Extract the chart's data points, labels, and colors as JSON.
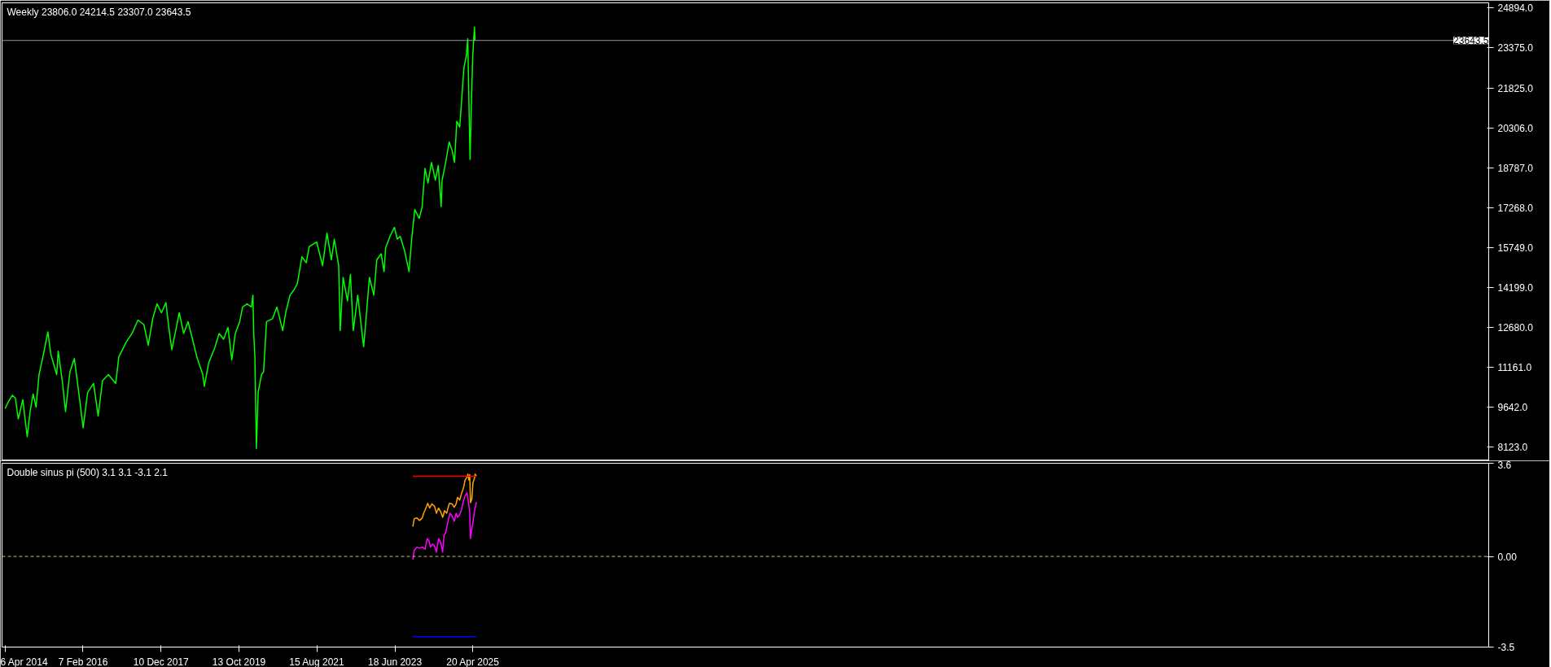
{
  "chart_data": [
    {
      "type": "line",
      "title": "Weekly  23806.0 24214.5 23307.0 23643.5",
      "x": [
        "2014-04-06",
        "2014-05-01",
        "2014-06-08",
        "2014-07-04",
        "2014-07-29",
        "2014-09-06",
        "2014-10-14",
        "2014-11-08",
        "2014-12-04",
        "2014-12-29",
        "2015-01-24",
        "2015-03-03",
        "2015-04-10",
        "2015-05-05",
        "2015-06-25",
        "2015-07-08",
        "2015-08-15",
        "2015-09-09",
        "2015-10-17",
        "2015-11-24",
        "2016-01-01",
        "2016-02-08",
        "2016-03-18",
        "2016-05-08",
        "2016-06-16",
        "2016-07-24",
        "2016-09-13",
        "2016-11-15",
        "2016-12-11",
        "2017-02-12",
        "2017-04-04",
        "2017-05-25",
        "2017-07-15",
        "2017-08-22",
        "2017-09-29",
        "2017-11-06",
        "2017-12-14",
        "2018-01-21",
        "2018-02-15",
        "2018-03-13",
        "2018-04-21",
        "2018-05-16",
        "2018-06-23",
        "2018-07-31",
        "2018-09-07",
        "2018-10-15",
        "2018-12-05",
        "2018-12-18",
        "2019-01-25",
        "2019-03-17",
        "2019-04-25",
        "2019-06-02",
        "2019-07-10",
        "2019-08-12",
        "2019-09-11",
        "2019-10-19",
        "2019-11-13",
        "2019-12-21",
        "2020-01-28",
        "2020-02-10",
        "2020-02-17",
        "2020-02-27",
        "2020-03-11",
        "2020-03-26",
        "2020-04-24",
        "2020-05-12",
        "2020-06-06",
        "2020-07-27",
        "2020-09-03",
        "2020-10-24",
        "2020-11-18",
        "2020-12-26",
        "2021-02-02",
        "2021-02-27",
        "2021-04-07",
        "2021-05-15",
        "2021-06-09",
        "2021-08-12",
        "2021-10-02",
        "2021-11-09",
        "2021-12-17",
        "2022-01-11",
        "2022-02-18",
        "2022-03-03",
        "2022-03-28",
        "2022-05-05",
        "2022-05-30",
        "2022-06-24",
        "2022-08-01",
        "2022-09-21",
        "2022-10-16",
        "2022-11-10",
        "2022-12-18",
        "2023-01-12",
        "2023-02-19",
        "2023-03-16",
        "2023-03-29",
        "2023-05-06",
        "2023-06-13",
        "2023-07-08",
        "2023-08-02",
        "2023-09-09",
        "2023-10-17",
        "2023-11-11",
        "2023-12-06",
        "2024-01-13",
        "2024-02-07",
        "2024-03-03",
        "2024-03-28",
        "2024-04-28",
        "2024-05-31",
        "2024-06-25",
        "2024-07-20",
        "2024-07-28",
        "2024-08-28",
        "2024-09-27",
        "2024-10-23",
        "2024-11-12",
        "2024-12-02",
        "2024-12-27",
        "2025-01-14",
        "2025-02-01",
        "2025-02-21",
        "2025-03-06",
        "2025-03-19",
        "2025-03-26",
        "2025-04-08",
        "2025-04-18",
        "2025-05-03",
        "2025-05-08"
      ],
      "series": [
        {
          "color": "#00ff00",
          "values": [
            9590,
            9820,
            10100,
            9990,
            9200,
            9930,
            8520,
            9480,
            10150,
            9650,
            10890,
            11670,
            12520,
            11670,
            10890,
            11790,
            10550,
            9480,
            11000,
            11500,
            10210,
            8860,
            10210,
            10550,
            9310,
            10660,
            10890,
            10550,
            11560,
            12120,
            12460,
            12970,
            12800,
            12010,
            13020,
            13590,
            13250,
            13640,
            12690,
            11840,
            12690,
            13250,
            12460,
            12910,
            12240,
            11560,
            10890,
            10440,
            11340,
            11900,
            12460,
            12240,
            12690,
            11450,
            12460,
            12910,
            13470,
            13590,
            13470,
            13920,
            12460,
            11560,
            8070,
            10210,
            10890,
            11000,
            12910,
            13020,
            13470,
            12570,
            13250,
            13920,
            14150,
            14370,
            15390,
            15160,
            15780,
            15950,
            15050,
            16290,
            15270,
            16060,
            15050,
            12570,
            14600,
            13700,
            14710,
            12570,
            13920,
            11950,
            13250,
            14600,
            13920,
            15270,
            15500,
            14820,
            15720,
            16170,
            16510,
            16060,
            16170,
            15610,
            14820,
            16170,
            17190,
            16850,
            17300,
            18760,
            18200,
            18990,
            18310,
            18870,
            17300,
            18310,
            18990,
            19770,
            19440,
            18990,
            20560,
            20340,
            21460,
            22590,
            23040,
            23710,
            20670,
            19100,
            21460,
            23040,
            24160,
            23643.5
          ]
        }
      ],
      "xlim": [
        "2014-03-11",
        "2049-04-07"
      ],
      "ylim": [
        7630,
        25080
      ],
      "yticks": [
        {
          "value": 24894,
          "label": "24894.0"
        },
        {
          "value": 23375,
          "label": "23375.0"
        },
        {
          "value": 21825,
          "label": "21825.0"
        },
        {
          "value": 20306,
          "label": "20306.0"
        },
        {
          "value": 18787,
          "label": "18787.0"
        },
        {
          "value": 17268,
          "label": "17268.0"
        },
        {
          "value": 15749,
          "label": "15749.0"
        },
        {
          "value": 14199,
          "label": "14199.0"
        },
        {
          "value": 12680,
          "label": "12680.0"
        },
        {
          "value": 11161,
          "label": "11161.0"
        },
        {
          "value": 9642,
          "label": "9642.0"
        },
        {
          "value": 8123,
          "label": "8123.0"
        }
      ],
      "ref_lines": [
        {
          "axis": "y",
          "value": 23643.5,
          "label": "23643.5",
          "color": "#8899aa",
          "line_style": "solid"
        }
      ],
      "tick_labels": "y"
    },
    {
      "type": "line",
      "title": "Double sinus pi (500) 3.1 3.1 -3.1 2.1",
      "series": [
        {
          "color": "#ffa500",
          "x": [
            "2023-11-19",
            "2023-12-01",
            "2023-12-24",
            "2024-01-16",
            "2024-02-09",
            "2024-02-20",
            "2024-03-15",
            "2024-03-26",
            "2024-04-12",
            "2024-04-30",
            "2024-05-24",
            "2024-06-09",
            "2024-06-28",
            "2024-07-16",
            "2024-08-02",
            "2024-08-18",
            "2024-09-06",
            "2024-09-17",
            "2024-09-29",
            "2024-10-22",
            "2024-11-10",
            "2024-11-26",
            "2024-12-08",
            "2024-12-27",
            "2025-01-12",
            "2025-01-28",
            "2025-02-11",
            "2025-02-28",
            "2025-03-07",
            "2025-03-16",
            "2025-03-23",
            "2025-03-30",
            "2025-04-11",
            "2025-04-20",
            "2025-05-02",
            "2025-05-09",
            "2025-05-20"
          ],
          "values": [
            1.15,
            1.46,
            1.49,
            1.39,
            1.49,
            1.67,
            1.92,
            2.05,
            1.87,
            2.03,
            1.94,
            1.67,
            1.87,
            1.72,
            1.51,
            1.77,
            1.67,
            1.87,
            2.05,
            2.03,
            1.9,
            2.03,
            2.28,
            2.18,
            2.44,
            2.64,
            2.95,
            3.06,
            3.18,
            2.95,
            3.16,
            2.08,
            2.23,
            2.85,
            3.0,
            3.18,
            3.1
          ]
        },
        {
          "color": "#ff00ff",
          "x": [
            "2023-11-19",
            "2023-12-01",
            "2023-12-24",
            "2024-01-16",
            "2024-02-09",
            "2024-03-03",
            "2024-03-22",
            "2024-04-07",
            "2024-04-19",
            "2024-05-07",
            "2024-05-24",
            "2024-06-09",
            "2024-06-28",
            "2024-07-16",
            "2024-08-02",
            "2024-08-13",
            "2024-08-30",
            "2024-09-17",
            "2024-10-04",
            "2024-10-22",
            "2024-11-10",
            "2024-11-26",
            "2024-12-08",
            "2024-12-27",
            "2025-01-12",
            "2025-01-28",
            "2025-02-11",
            "2025-02-28",
            "2025-03-11",
            "2025-03-23",
            "2025-03-30",
            "2025-04-08",
            "2025-04-20",
            "2025-05-02",
            "2025-05-20"
          ],
          "values": [
            -0.13,
            0.23,
            0.36,
            0.32,
            0.36,
            0.28,
            0.69,
            0.59,
            0.36,
            0.48,
            0.4,
            0.17,
            0.69,
            0.53,
            0.17,
            0.79,
            0.95,
            1.36,
            1.67,
            1.56,
            1.36,
            1.67,
            1.51,
            1.62,
            1.82,
            2.13,
            2.34,
            2.46,
            2.13,
            1.72,
            0.69,
            1.0,
            1.31,
            1.72,
            2.1
          ]
        },
        {
          "color": "#ff0000",
          "x": [
            "2023-11-19",
            "2025-05-20"
          ],
          "values": [
            3.1,
            3.1
          ]
        },
        {
          "color": "#0000ff",
          "x": [
            "2023-11-19",
            "2025-05-20"
          ],
          "values": [
            -3.1,
            -3.1
          ]
        }
      ],
      "xlim": [
        "2014-03-11",
        "2049-04-07"
      ],
      "xticks": [
        {
          "value": "2014-04-06",
          "label": "6 Apr 2014"
        },
        {
          "value": "2016-02-07",
          "label": "7 Feb 2016"
        },
        {
          "value": "2017-12-10",
          "label": "10 Dec 2017"
        },
        {
          "value": "2019-10-13",
          "label": "13 Oct 2019"
        },
        {
          "value": "2021-08-15",
          "label": "15 Aug 2021"
        },
        {
          "value": "2023-06-18",
          "label": "18 Jun 2023"
        },
        {
          "value": "2025-04-20",
          "label": "20 Apr 2025"
        }
      ],
      "ylim": [
        -3.5,
        3.6
      ],
      "yticks": [
        3.6,
        {
          "value": 0,
          "label": "0.00"
        },
        -3.5
      ],
      "ref_lines": [
        {
          "axis": "y",
          "value": 0,
          "color": "#c8c850",
          "line_style": "dashed"
        }
      ]
    }
  ]
}
